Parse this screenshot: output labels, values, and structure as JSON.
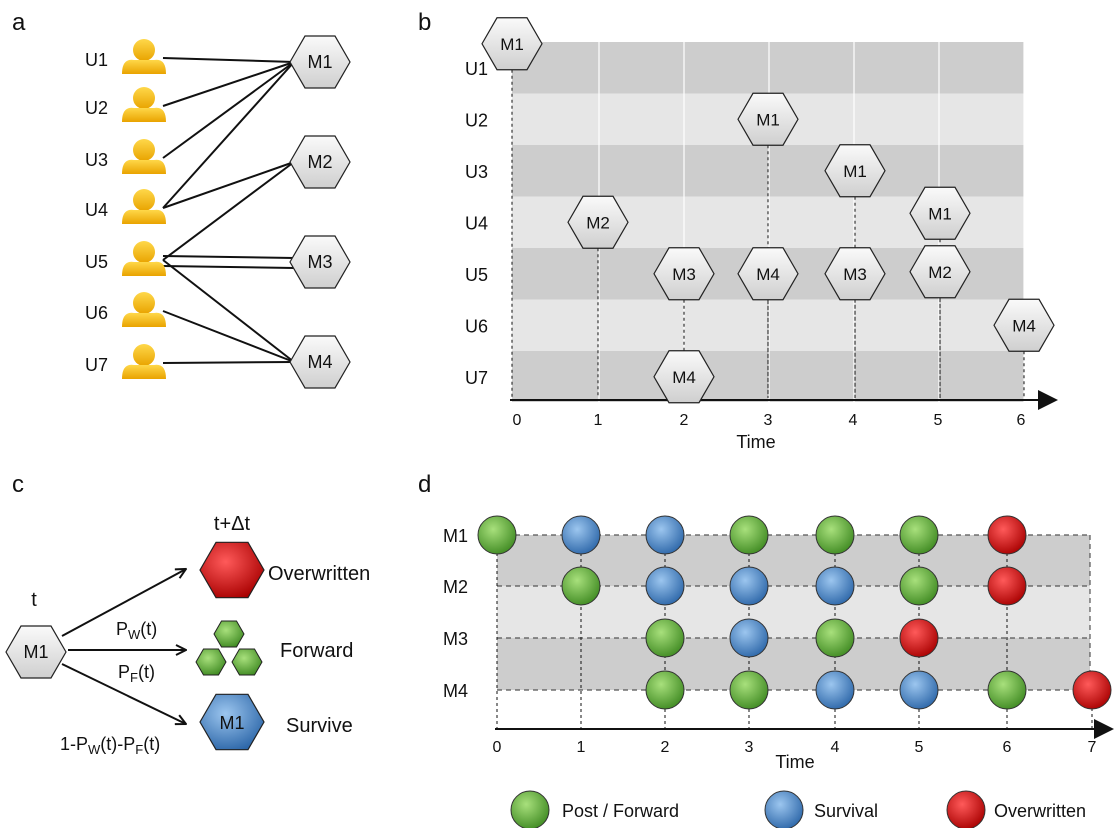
{
  "panels": {
    "a": "a",
    "b": "b",
    "c": "c",
    "d": "d"
  },
  "panel_a": {
    "users": [
      "U1",
      "U2",
      "U3",
      "U4",
      "U5",
      "U6",
      "U7"
    ],
    "memes": [
      "M1",
      "M2",
      "M3",
      "M4"
    ],
    "links": [
      [
        "U1",
        "M1"
      ],
      [
        "U2",
        "M1"
      ],
      [
        "U3",
        "M1"
      ],
      [
        "U4",
        "M1"
      ],
      [
        "U4",
        "M2"
      ],
      [
        "U5",
        "M2"
      ],
      [
        "U5",
        "M3"
      ],
      [
        "U5",
        "M3"
      ],
      [
        "U5",
        "M4"
      ],
      [
        "U6",
        "M4"
      ],
      [
        "U7",
        "M4"
      ]
    ]
  },
  "panel_b": {
    "rows": [
      "U1",
      "U2",
      "U3",
      "U4",
      "U5",
      "U6",
      "U7"
    ],
    "x_ticks": [
      "0",
      "1",
      "2",
      "3",
      "4",
      "5",
      "6"
    ],
    "xlabel": "Time",
    "events": [
      {
        "t": 0,
        "user": "U1",
        "meme": "M1"
      },
      {
        "t": 1,
        "user": "U4",
        "meme": "M2"
      },
      {
        "t": 2,
        "user": "U5",
        "meme": "M3"
      },
      {
        "t": 2,
        "user": "U7",
        "meme": "M4"
      },
      {
        "t": 3,
        "user": "U2",
        "meme": "M1"
      },
      {
        "t": 3,
        "user": "U5",
        "meme": "M4"
      },
      {
        "t": 4,
        "user": "U3",
        "meme": "M1"
      },
      {
        "t": 4,
        "user": "U5",
        "meme": "M3"
      },
      {
        "t": 5,
        "user": "U4",
        "meme": "M1"
      },
      {
        "t": 5,
        "user": "U5",
        "meme": "M2"
      },
      {
        "t": 6,
        "user": "U6",
        "meme": "M4"
      }
    ]
  },
  "panel_c": {
    "t_label": "t",
    "t_next_label": "t+Δt",
    "meme": "M1",
    "outcomes": [
      {
        "name": "Overwritten",
        "prob_base": "P",
        "prob_sub": "W",
        "prob_tail": "(t)",
        "color": "#cc0000"
      },
      {
        "name": "Forward",
        "prob_base": "P",
        "prob_sub": "F",
        "prob_tail": "(t)",
        "color": "#5aa832"
      },
      {
        "name": "Survive",
        "prob_text": "1-P",
        "prob_sub1": "W",
        "prob_mid": "(t)-P",
        "prob_sub2": "F",
        "prob_tail": "(t)",
        "color": "#3e7fbf"
      }
    ]
  },
  "panel_d": {
    "rows": [
      "M1",
      "M2",
      "M3",
      "M4"
    ],
    "x_ticks": [
      "0",
      "1",
      "2",
      "3",
      "4",
      "5",
      "6",
      "7"
    ],
    "xlabel": "Time",
    "states": [
      [
        "P",
        "S",
        "S",
        "P",
        "P",
        "P",
        "O",
        null
      ],
      [
        null,
        "P",
        "S",
        "S",
        "S",
        "P",
        "O",
        null
      ],
      [
        null,
        null,
        "P",
        "S",
        "P",
        "O",
        null,
        null
      ],
      [
        null,
        null,
        "P",
        "P",
        "S",
        "S",
        "P",
        "O"
      ]
    ]
  },
  "legend": [
    {
      "key": "P",
      "label": "Post / Forward",
      "color": "#5aa832"
    },
    {
      "key": "S",
      "label": "Survival",
      "color": "#3e7fbf"
    },
    {
      "key": "O",
      "label": "Overwritten",
      "color": "#cc0000"
    }
  ]
}
